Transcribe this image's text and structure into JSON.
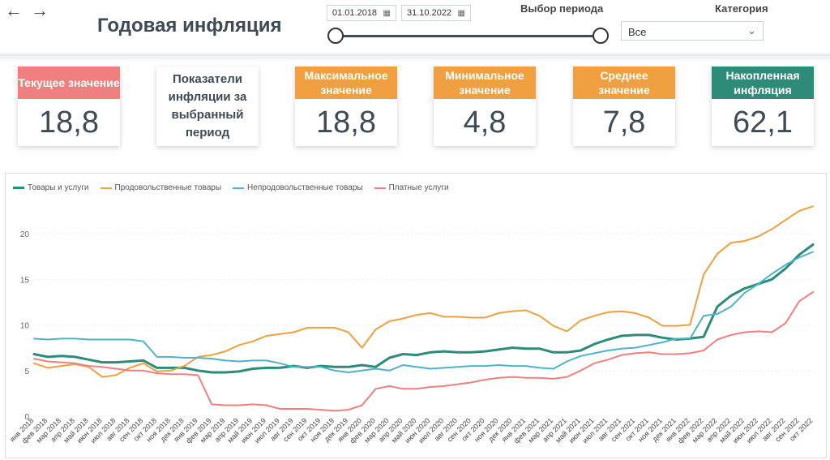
{
  "nav": {
    "back": "←",
    "forward": "→"
  },
  "page": {
    "title": "Годовая инфляция"
  },
  "filters": {
    "date_from": "01.01.2018",
    "date_to": "31.10.2022",
    "period_label": "Выбор периода",
    "category_label": "Категория",
    "category_value": "Все"
  },
  "kpis": {
    "current": {
      "label": "Текущее значение",
      "value": "18,8"
    },
    "info": {
      "label": "Показатели инфляции за выбранный период"
    },
    "max": {
      "label": "Максимальное значение",
      "value": "18,8"
    },
    "min": {
      "label": "Минимальное значение",
      "value": "4,8"
    },
    "avg": {
      "label": "Среднее значение",
      "value": "7,8"
    },
    "accum": {
      "label": "Накопленная инфляция",
      "value": "62,1"
    }
  },
  "colors": {
    "current": "#f08080",
    "orange": "#f0a040",
    "teal_dark": "#2e8b78",
    "series_total": "#2e8b78",
    "series_food": "#f0a040",
    "series_nonfood": "#4fb3c8",
    "series_services": "#f08080"
  },
  "chart_data": {
    "type": "line",
    "ylim": [
      0,
      24
    ],
    "yticks": [
      0,
      5,
      10,
      15,
      20
    ],
    "x": [
      "янв 2018",
      "фев 2018",
      "мар 2018",
      "апр 2018",
      "май 2018",
      "июн 2018",
      "июл 2018",
      "авг 2018",
      "сен 2018",
      "окт 2018",
      "ноя 2018",
      "дек 2018",
      "янв 2019",
      "фев 2019",
      "мар 2019",
      "апр 2019",
      "май 2019",
      "июн 2019",
      "июл 2019",
      "авг 2019",
      "сен 2019",
      "окт 2019",
      "ноя 2019",
      "дек 2019",
      "янв 2020",
      "фев 2020",
      "мар 2020",
      "апр 2020",
      "май 2020",
      "июн 2020",
      "июл 2020",
      "авг 2020",
      "сен 2020",
      "окт 2020",
      "ноя 2020",
      "дек 2020",
      "янв 2021",
      "фев 2021",
      "мар 2021",
      "апр 2021",
      "май 2021",
      "июн 2021",
      "июл 2021",
      "авг 2021",
      "сен 2021",
      "окт 2021",
      "ноя 2021",
      "дек 2021",
      "янв 2022",
      "фев 2022",
      "мар 2022",
      "апр 2022",
      "май 2022",
      "июн 2022",
      "июл 2022",
      "авг 2022",
      "сен 2022",
      "окт 2022"
    ],
    "series": [
      {
        "name": "Товары и услуги",
        "color": "#2e8b78",
        "width": 3,
        "values": [
          6.8,
          6.5,
          6.6,
          6.5,
          6.2,
          5.9,
          5.9,
          6.0,
          6.1,
          5.3,
          5.3,
          5.3,
          5.0,
          4.8,
          4.8,
          4.9,
          5.2,
          5.3,
          5.3,
          5.5,
          5.3,
          5.5,
          5.4,
          5.4,
          5.6,
          5.4,
          6.4,
          6.8,
          6.7,
          7.0,
          7.1,
          7.0,
          7.0,
          7.1,
          7.3,
          7.5,
          7.4,
          7.4,
          7.0,
          7.0,
          7.2,
          7.9,
          8.4,
          8.8,
          8.9,
          8.9,
          8.6,
          8.4,
          8.5,
          8.7,
          12.0,
          13.2,
          14.0,
          14.5,
          15.0,
          16.2,
          17.7,
          18.8
        ]
      },
      {
        "name": "Продовольственные товары",
        "color": "#f0a040",
        "width": 2,
        "values": [
          5.8,
          5.3,
          5.5,
          5.7,
          5.4,
          4.3,
          4.5,
          5.3,
          5.8,
          4.9,
          5.0,
          5.5,
          6.5,
          6.7,
          7.1,
          7.8,
          8.2,
          8.8,
          9.0,
          9.2,
          9.7,
          9.7,
          9.7,
          9.2,
          7.5,
          9.5,
          10.4,
          10.7,
          11.1,
          11.3,
          10.9,
          10.9,
          10.8,
          10.8,
          11.3,
          11.5,
          11.6,
          11.0,
          9.9,
          9.3,
          10.5,
          11.0,
          11.4,
          11.5,
          11.3,
          10.8,
          9.9,
          9.9,
          10.0,
          15.5,
          17.8,
          19.0,
          19.2,
          19.7,
          20.5,
          21.5,
          22.5,
          23.0
        ]
      },
      {
        "name": "Непродовольственные товары",
        "color": "#4fb3c8",
        "width": 2,
        "values": [
          8.5,
          8.4,
          8.5,
          8.5,
          8.4,
          8.4,
          8.4,
          8.4,
          8.2,
          6.5,
          6.5,
          6.4,
          6.4,
          6.3,
          6.1,
          6.0,
          6.1,
          6.1,
          5.8,
          5.4,
          5.4,
          5.4,
          5.0,
          4.8,
          5.0,
          5.2,
          5.0,
          5.6,
          5.4,
          5.2,
          5.3,
          5.4,
          5.5,
          5.5,
          5.6,
          5.5,
          5.5,
          5.3,
          5.2,
          6.0,
          6.6,
          6.9,
          7.2,
          7.4,
          7.5,
          7.8,
          8.1,
          8.5,
          8.5,
          11.0,
          11.2,
          12.0,
          13.5,
          14.5,
          15.6,
          16.6,
          17.4,
          18.0
        ]
      },
      {
        "name": "Платные услуги",
        "color": "#f08080",
        "width": 2,
        "values": [
          6.3,
          6.0,
          5.9,
          5.8,
          5.5,
          5.4,
          5.2,
          5.0,
          5.0,
          4.7,
          4.6,
          4.6,
          4.5,
          1.3,
          1.2,
          1.2,
          1.3,
          1.2,
          0.8,
          0.8,
          0.8,
          0.7,
          0.6,
          0.7,
          1.2,
          3.0,
          3.3,
          3.0,
          3.0,
          3.2,
          3.3,
          3.5,
          3.7,
          4.0,
          4.2,
          4.3,
          4.2,
          4.2,
          4.1,
          4.3,
          5.0,
          5.8,
          6.2,
          6.7,
          6.9,
          7.0,
          6.8,
          6.8,
          6.9,
          7.2,
          8.4,
          8.9,
          9.2,
          9.3,
          9.2,
          10.2,
          12.6,
          13.6
        ]
      }
    ]
  }
}
